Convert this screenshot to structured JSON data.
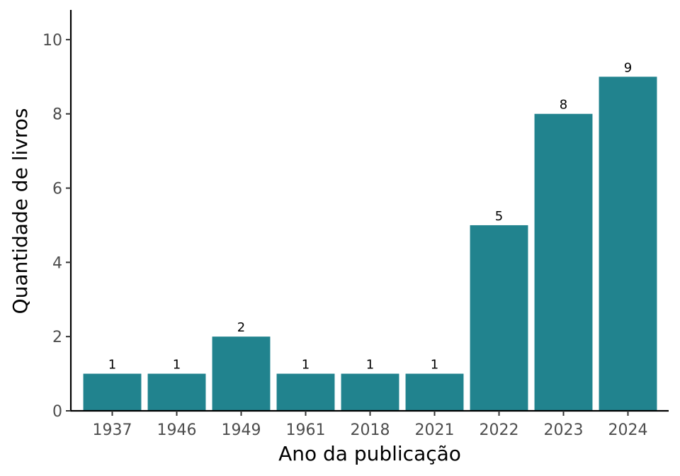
{
  "chart_data": {
    "type": "bar",
    "categories": [
      "1937",
      "1946",
      "1949",
      "1961",
      "2018",
      "2021",
      "2022",
      "2023",
      "2024"
    ],
    "values": [
      1,
      1,
      2,
      1,
      1,
      1,
      5,
      8,
      9
    ],
    "title": "",
    "xlabel": "Ano da publicação",
    "ylabel": "Quantidade de livros",
    "ylim": [
      0,
      10.8
    ],
    "yticks": [
      0,
      2,
      4,
      6,
      8,
      10
    ],
    "bar_color": "#21838e",
    "grid": false,
    "data_labels": true
  }
}
